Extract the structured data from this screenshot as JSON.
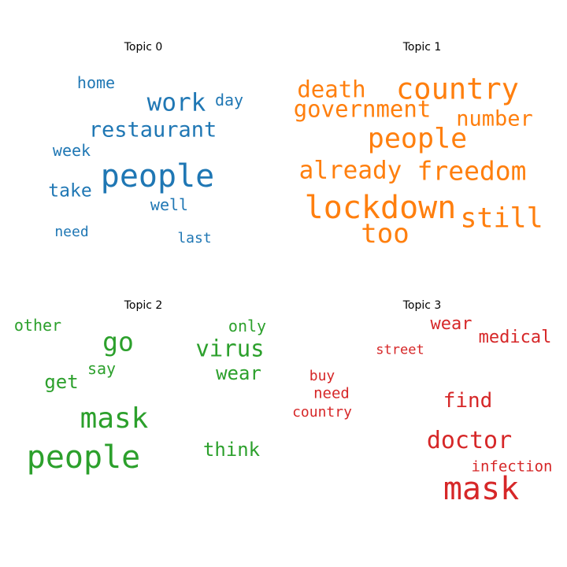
{
  "chart_data": [
    {
      "type": "wordcloud",
      "title": "Topic 0",
      "color": "#1f77b4",
      "words": [
        {
          "text": "people",
          "weight": 1.0
        },
        {
          "text": "work",
          "weight": 0.66
        },
        {
          "text": "restaurant",
          "weight": 0.62
        },
        {
          "text": "take",
          "weight": 0.5
        },
        {
          "text": "home",
          "weight": 0.45
        },
        {
          "text": "day",
          "weight": 0.45
        },
        {
          "text": "week",
          "weight": 0.45
        },
        {
          "text": "well",
          "weight": 0.45
        },
        {
          "text": "need",
          "weight": 0.42
        },
        {
          "text": "last",
          "weight": 0.42
        }
      ]
    },
    {
      "type": "wordcloud",
      "title": "Topic 1",
      "color": "#ff7f0e",
      "words": [
        {
          "text": "lockdown",
          "weight": 1.0
        },
        {
          "text": "country",
          "weight": 0.94
        },
        {
          "text": "people",
          "weight": 0.9
        },
        {
          "text": "still",
          "weight": 0.9
        },
        {
          "text": "too",
          "weight": 0.87
        },
        {
          "text": "freedom",
          "weight": 0.84
        },
        {
          "text": "already",
          "weight": 0.8
        },
        {
          "text": "death",
          "weight": 0.76
        },
        {
          "text": "government",
          "weight": 0.74
        },
        {
          "text": "number",
          "weight": 0.7
        }
      ]
    },
    {
      "type": "wordcloud",
      "title": "Topic 2",
      "color": "#2ca02c",
      "words": [
        {
          "text": "people",
          "weight": 1.0
        },
        {
          "text": "mask",
          "weight": 0.9
        },
        {
          "text": "go",
          "weight": 0.82
        },
        {
          "text": "virus",
          "weight": 0.72
        },
        {
          "text": "wear",
          "weight": 0.62
        },
        {
          "text": "think",
          "weight": 0.6
        },
        {
          "text": "get",
          "weight": 0.6
        },
        {
          "text": "other",
          "weight": 0.52
        },
        {
          "text": "only",
          "weight": 0.52
        },
        {
          "text": "say",
          "weight": 0.52
        }
      ]
    },
    {
      "type": "wordcloud",
      "title": "Topic 3",
      "color": "#d62728",
      "words": [
        {
          "text": "mask",
          "weight": 1.0
        },
        {
          "text": "doctor",
          "weight": 0.75
        },
        {
          "text": "find",
          "weight": 0.65
        },
        {
          "text": "medical",
          "weight": 0.55
        },
        {
          "text": "wear",
          "weight": 0.53
        },
        {
          "text": "infection",
          "weight": 0.47
        },
        {
          "text": "need",
          "weight": 0.47
        },
        {
          "text": "buy",
          "weight": 0.45
        },
        {
          "text": "country",
          "weight": 0.45
        },
        {
          "text": "street",
          "weight": 0.43
        }
      ]
    }
  ]
}
